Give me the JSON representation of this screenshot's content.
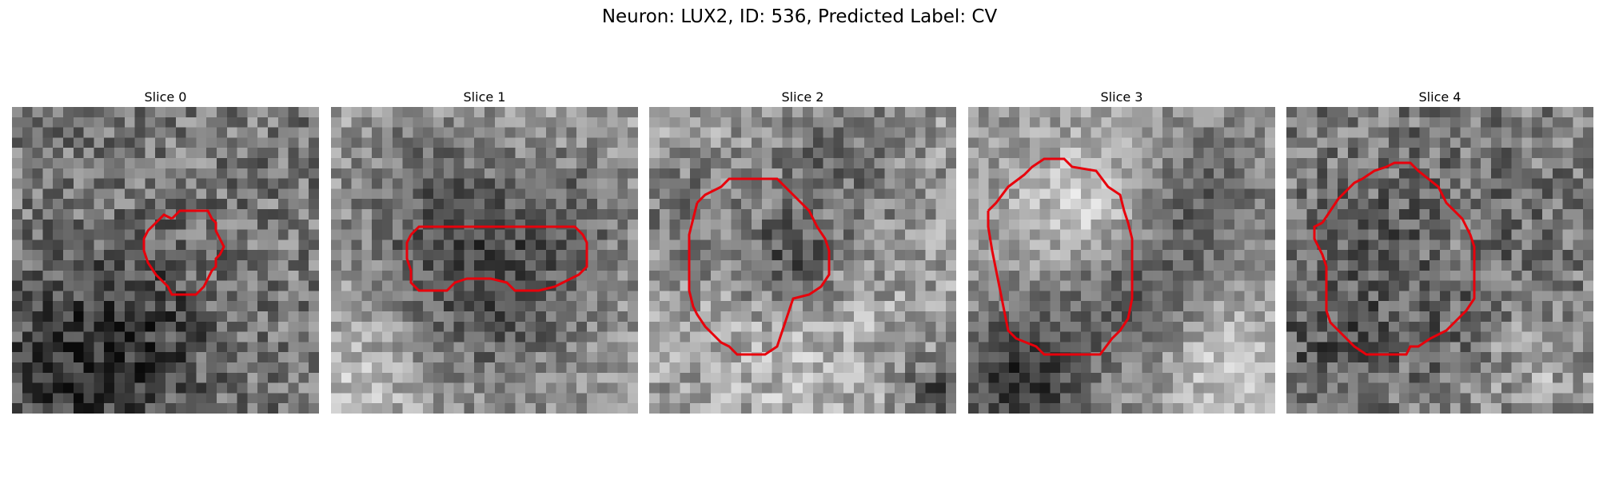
{
  "figure": {
    "title": "Neuron: LUX2, ID: 536, Predicted Label: CV"
  },
  "panels": [
    {
      "title": "Slice 0"
    },
    {
      "title": "Slice 1"
    },
    {
      "title": "Slice 2"
    },
    {
      "title": "Slice 3"
    },
    {
      "title": "Slice 4"
    }
  ],
  "colors": {
    "contour": "#e8000b",
    "background": "#ffffff"
  }
}
